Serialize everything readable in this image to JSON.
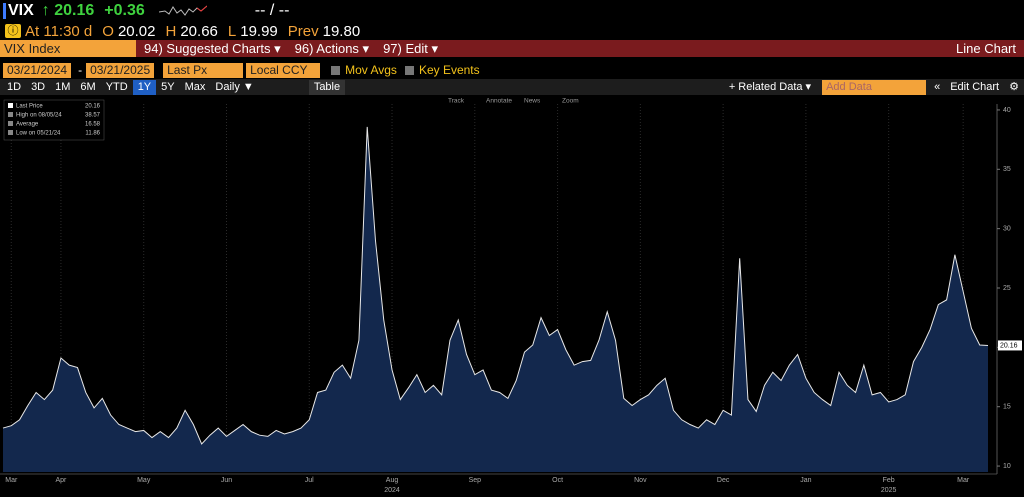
{
  "header": {
    "ticker": "VIX",
    "last": "↑ 20.16",
    "change": "+0.36",
    "bid_ask": "-- / --",
    "time": "At 11:30 d",
    "quote": [
      {
        "label": "O",
        "value": "20.02"
      },
      {
        "label": "H",
        "value": "20.66"
      },
      {
        "label": "L",
        "value": "19.99"
      },
      {
        "label": "Prev",
        "value": "19.80"
      }
    ]
  },
  "menu": {
    "security": "VIX Index",
    "items": [
      "94) Suggested Charts ▾",
      "96) Actions ▾",
      "97) Edit ▾"
    ],
    "view": "Line Chart"
  },
  "controls": {
    "start_date": "03/21/2024",
    "separator": "-",
    "end_date": "03/21/2025",
    "field": "Last Px",
    "currency": "Local CCY",
    "toggles": [
      "Mov Avgs",
      "Key Events"
    ]
  },
  "toolbar": {
    "periods": [
      "1D",
      "3D",
      "1M",
      "6M",
      "YTD",
      "1Y",
      "5Y",
      "Max"
    ],
    "active_period": "1Y",
    "frequency": "Daily ▼",
    "table": "Table",
    "related": "+ Related Data ▾",
    "add_data": "Add Data",
    "edit": "Edit Chart"
  },
  "chart_tools": [
    "Track",
    "Annotate",
    "News",
    "Zoom"
  ],
  "chart_data": {
    "type": "area",
    "categories": [
      null,
      "Mar",
      null,
      null,
      null,
      null,
      null,
      "Apr",
      null,
      null,
      null,
      null,
      null,
      null,
      null,
      null,
      null,
      "May",
      null,
      null,
      null,
      null,
      null,
      null,
      null,
      null,
      null,
      "Jun",
      null,
      null,
      null,
      null,
      null,
      null,
      null,
      null,
      null,
      "Jul",
      null,
      null,
      null,
      null,
      null,
      null,
      null,
      null,
      null,
      "Aug",
      null,
      null,
      null,
      null,
      null,
      null,
      null,
      null,
      null,
      "Sep",
      null,
      null,
      null,
      null,
      null,
      null,
      null,
      null,
      null,
      "Oct",
      null,
      null,
      null,
      null,
      null,
      null,
      null,
      null,
      null,
      "Nov",
      null,
      null,
      null,
      null,
      null,
      null,
      null,
      null,
      null,
      "Dec",
      null,
      null,
      null,
      null,
      null,
      null,
      null,
      null,
      null,
      "Jan",
      null,
      null,
      null,
      null,
      null,
      null,
      null,
      null,
      null,
      "Feb",
      null,
      null,
      null,
      null,
      null,
      null,
      null,
      null,
      "Mar",
      null,
      null,
      null
    ],
    "years": [
      "2024",
      "2025"
    ],
    "series": [
      {
        "name": "Last Price",
        "color": "#e8e8e8",
        "fill": "#13284d",
        "values": [
          13.2,
          13.4,
          13.9,
          15.1,
          16.2,
          15.6,
          16.4,
          19.1,
          18.5,
          18.3,
          16.2,
          14.9,
          15.7,
          14.3,
          13.5,
          13.2,
          12.9,
          13.0,
          12.4,
          12.9,
          12.4,
          13.2,
          14.7,
          13.5,
          11.86,
          12.6,
          13.2,
          12.5,
          13.0,
          13.5,
          12.9,
          12.6,
          12.5,
          13.0,
          12.7,
          12.9,
          13.2,
          13.9,
          16.2,
          16.4,
          17.9,
          18.5,
          17.4,
          20.6,
          38.57,
          29.0,
          22.3,
          18.1,
          15.6,
          16.6,
          17.7,
          16.2,
          16.8,
          16.0,
          20.6,
          22.3,
          19.4,
          17.7,
          18.1,
          16.4,
          16.2,
          15.7,
          17.2,
          19.6,
          20.2,
          22.5,
          21.0,
          21.5,
          19.8,
          18.5,
          18.8,
          18.9,
          20.6,
          23.0,
          20.6,
          15.7,
          15.1,
          15.6,
          16.0,
          16.8,
          17.4,
          14.7,
          13.9,
          13.5,
          13.2,
          13.9,
          13.5,
          14.7,
          14.3,
          27.5,
          15.6,
          14.6,
          16.8,
          17.9,
          17.2,
          18.5,
          19.4,
          17.4,
          16.2,
          15.6,
          15.1,
          17.9,
          16.8,
          16.2,
          18.5,
          16.0,
          16.2,
          15.4,
          15.6,
          16.0,
          18.8,
          20.0,
          21.5,
          23.6,
          24.0,
          27.8,
          24.7,
          21.6,
          20.2,
          20.16
        ]
      }
    ],
    "stats": [
      {
        "label": "High on 08/05/24"
      },
      {
        "label": "Average",
        "value": 16.58
      },
      {
        "label": "Low on 05/21/24"
      }
    ],
    "legend": "upper left",
    "ylim": [
      9.5,
      40.5
    ],
    "yticks": [
      10,
      15,
      20,
      25,
      30,
      35,
      40
    ]
  }
}
